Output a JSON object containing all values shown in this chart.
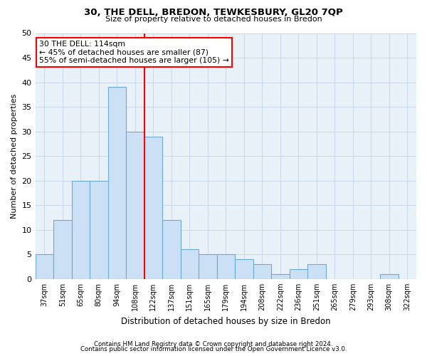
{
  "title1": "30, THE DELL, BREDON, TEWKESBURY, GL20 7QP",
  "title2": "Size of property relative to detached houses in Bredon",
  "xlabel": "Distribution of detached houses by size in Bredon",
  "ylabel": "Number of detached properties",
  "categories": [
    "37sqm",
    "51sqm",
    "65sqm",
    "80sqm",
    "94sqm",
    "108sqm",
    "122sqm",
    "137sqm",
    "151sqm",
    "165sqm",
    "179sqm",
    "194sqm",
    "208sqm",
    "222sqm",
    "236sqm",
    "251sqm",
    "265sqm",
    "279sqm",
    "293sqm",
    "308sqm",
    "322sqm"
  ],
  "values": [
    5,
    12,
    20,
    20,
    39,
    30,
    29,
    12,
    6,
    5,
    5,
    4,
    3,
    1,
    2,
    3,
    0,
    0,
    0,
    1,
    0
  ],
  "bar_color": "#cce0f5",
  "bar_edge_color": "#6aaad4",
  "vline_color": "red",
  "vline_pos": 5.5,
  "ylim": [
    0,
    50
  ],
  "yticks": [
    0,
    5,
    10,
    15,
    20,
    25,
    30,
    35,
    40,
    45,
    50
  ],
  "annotation_title": "30 THE DELL: 114sqm",
  "annotation_line1": "← 45% of detached houses are smaller (87)",
  "annotation_line2": "55% of semi-detached houses are larger (105) →",
  "annotation_box_color": "white",
  "annotation_box_edge_color": "red",
  "footer1": "Contains HM Land Registry data © Crown copyright and database right 2024.",
  "footer2": "Contains public sector information licensed under the Open Government Licence v3.0.",
  "grid_color": "#c8d8ea",
  "background_color": "#e8f0f8"
}
